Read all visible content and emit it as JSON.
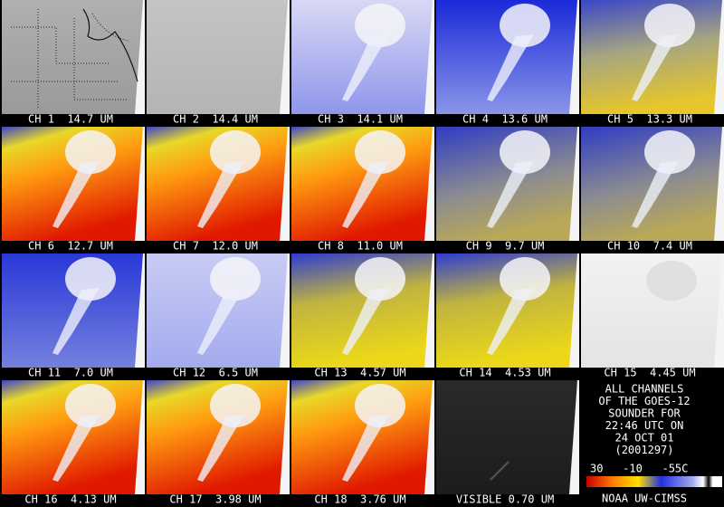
{
  "panels": [
    {
      "label": "CH 1  14.7 UM"
    },
    {
      "label": "CH 2  14.4 UM"
    },
    {
      "label": "CH 3  14.1 UM"
    },
    {
      "label": "CH 4  13.6 UM"
    },
    {
      "label": "CH 5  13.3 UM"
    },
    {
      "label": "CH 6  12.7 UM"
    },
    {
      "label": "CH 7  12.0 UM"
    },
    {
      "label": "CH 8  11.0 UM"
    },
    {
      "label": "CH 9  9.7 UM"
    },
    {
      "label": "CH 10  7.4 UM"
    },
    {
      "label": "CH 11  7.0 UM"
    },
    {
      "label": "CH 12  6.5 UM"
    },
    {
      "label": "CH 13  4.57 UM"
    },
    {
      "label": "CH 14  4.53 UM"
    },
    {
      "label": "CH 15  4.45 UM"
    },
    {
      "label": "CH 16  4.13 UM"
    },
    {
      "label": "CH 17  3.98 UM"
    },
    {
      "label": "CH 18  3.76 UM"
    },
    {
      "label": "VISIBLE 0.70 UM"
    }
  ],
  "caption": {
    "lines": [
      "ALL CHANNELS",
      "OF THE GOES-12",
      "SOUNDER FOR",
      "22:46 UTC ON",
      "24 OCT 01",
      "(2001297)"
    ]
  },
  "colorbar": {
    "labels": "30   -10   -55C"
  },
  "credit": "NOAA UW-CIMSS"
}
